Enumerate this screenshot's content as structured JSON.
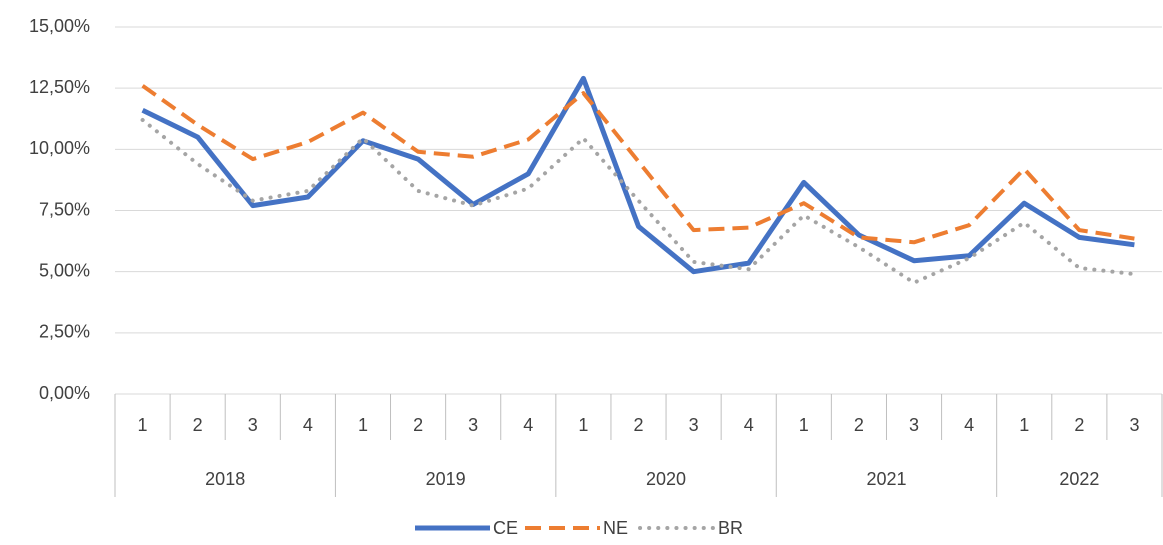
{
  "chart_data": {
    "type": "line",
    "categories": [
      "1",
      "2",
      "3",
      "4",
      "1",
      "2",
      "3",
      "4",
      "1",
      "2",
      "3",
      "4",
      "1",
      "2",
      "3",
      "4",
      "1",
      "2",
      "3"
    ],
    "group_categories": [
      "2018",
      null,
      null,
      null,
      "2019",
      null,
      null,
      null,
      "2020",
      null,
      null,
      null,
      "2021",
      null,
      null,
      null,
      "2022",
      null,
      null
    ],
    "series": [
      {
        "name": "CE",
        "color": "#4472c4",
        "dash": "solid",
        "values": [
          11.6,
          10.5,
          7.7,
          8.05,
          10.35,
          9.6,
          7.75,
          9.0,
          12.9,
          6.85,
          5.0,
          5.35,
          8.65,
          6.5,
          5.45,
          5.65,
          7.8,
          6.4,
          6.1
        ]
      },
      {
        "name": "NE",
        "color": "#ed7d31",
        "dash": "dash",
        "values": [
          12.6,
          11.0,
          9.6,
          10.3,
          11.5,
          9.9,
          9.7,
          10.4,
          12.3,
          9.5,
          6.7,
          6.8,
          7.8,
          6.4,
          6.2,
          6.9,
          9.2,
          6.7,
          6.35
        ]
      },
      {
        "name": "BR",
        "color": "#a5a5a5",
        "dash": "dot",
        "values": [
          11.2,
          9.4,
          7.9,
          8.3,
          10.45,
          8.3,
          7.7,
          8.4,
          10.45,
          7.9,
          5.4,
          5.1,
          7.3,
          6.0,
          4.55,
          5.55,
          7.0,
          5.15,
          4.9
        ]
      }
    ],
    "ylim": [
      0,
      15
    ],
    "yticks": [
      {
        "value": 0,
        "label": "0,00%"
      },
      {
        "value": 2.5,
        "label": "2,50%"
      },
      {
        "value": 5,
        "label": "5,00%"
      },
      {
        "value": 7.5,
        "label": "7,50%"
      },
      {
        "value": 10,
        "label": "10,00%"
      },
      {
        "value": 12.5,
        "label": "12,50%"
      },
      {
        "value": 15,
        "label": "15,00%"
      }
    ],
    "grid": true,
    "legend": "bottom"
  }
}
